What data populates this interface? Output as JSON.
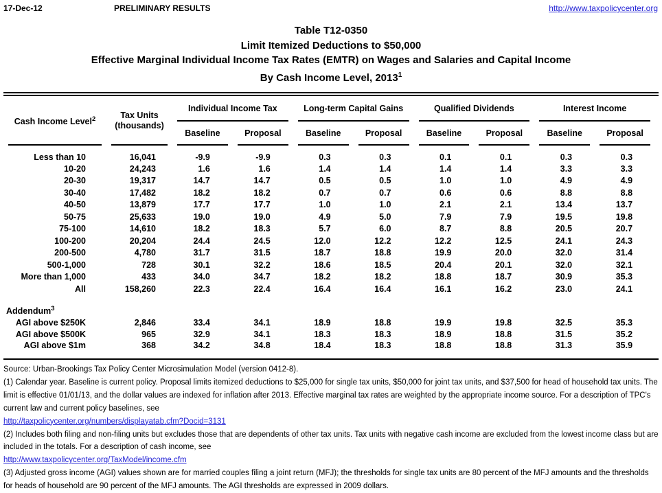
{
  "page": {
    "date": "17-Dec-12",
    "status": "PRELIMINARY RESULTS",
    "site_url": "http://www.taxpolicycenter.org"
  },
  "title": {
    "line1": "Table T12-0350",
    "line2": "Limit Itemized Deductions to $50,000",
    "line3": "Effective Marginal Individual Income Tax Rates (EMTR) on Wages and Salaries and Capital Income",
    "line4": "By Cash Income Level, 2013",
    "line4_superscript": "1"
  },
  "table": {
    "col1_header": "Cash Income Level",
    "col1_superscript": "2",
    "col2_header_line1": "Tax Units",
    "col2_header_line2": "(thousands)",
    "groups": [
      "Individual Income Tax",
      "Long-term Capital Gains",
      "Qualified Dividends",
      "Interest Income"
    ],
    "sub_headers": [
      "Baseline",
      "Proposal"
    ],
    "rows": [
      {
        "label": "Less than 10",
        "tax_units": "16,041",
        "values": [
          "-9.9",
          "-9.9",
          "0.3",
          "0.3",
          "0.1",
          "0.1",
          "0.3",
          "0.3"
        ]
      },
      {
        "label": "10-20",
        "tax_units": "24,243",
        "values": [
          "1.6",
          "1.6",
          "1.4",
          "1.4",
          "1.4",
          "1.4",
          "3.3",
          "3.3"
        ]
      },
      {
        "label": "20-30",
        "tax_units": "19,317",
        "values": [
          "14.7",
          "14.7",
          "0.5",
          "0.5",
          "1.0",
          "1.0",
          "4.9",
          "4.9"
        ]
      },
      {
        "label": "30-40",
        "tax_units": "17,482",
        "values": [
          "18.2",
          "18.2",
          "0.7",
          "0.7",
          "0.6",
          "0.6",
          "8.8",
          "8.8"
        ]
      },
      {
        "label": "40-50",
        "tax_units": "13,879",
        "values": [
          "17.7",
          "17.7",
          "1.0",
          "1.0",
          "2.1",
          "2.1",
          "13.4",
          "13.7"
        ]
      },
      {
        "label": "50-75",
        "tax_units": "25,633",
        "values": [
          "19.0",
          "19.0",
          "4.9",
          "5.0",
          "7.9",
          "7.9",
          "19.5",
          "19.8"
        ]
      },
      {
        "label": "75-100",
        "tax_units": "14,610",
        "values": [
          "18.2",
          "18.3",
          "5.7",
          "6.0",
          "8.7",
          "8.8",
          "20.5",
          "20.7"
        ]
      },
      {
        "label": "100-200",
        "tax_units": "20,204",
        "values": [
          "24.4",
          "24.5",
          "12.0",
          "12.2",
          "12.2",
          "12.5",
          "24.1",
          "24.3"
        ]
      },
      {
        "label": "200-500",
        "tax_units": "4,780",
        "values": [
          "31.7",
          "31.5",
          "18.7",
          "18.8",
          "19.9",
          "20.0",
          "32.0",
          "31.4"
        ]
      },
      {
        "label": "500-1,000",
        "tax_units": "728",
        "values": [
          "30.1",
          "32.2",
          "18.6",
          "18.5",
          "20.4",
          "20.1",
          "32.0",
          "32.1"
        ]
      },
      {
        "label": "More than 1,000",
        "tax_units": "433",
        "values": [
          "34.0",
          "34.7",
          "18.2",
          "18.2",
          "18.8",
          "18.7",
          "30.9",
          "35.3"
        ]
      },
      {
        "label": "All",
        "tax_units": "158,260",
        "values": [
          "22.3",
          "22.4",
          "16.4",
          "16.4",
          "16.1",
          "16.2",
          "23.0",
          "24.1"
        ]
      }
    ],
    "addendum_label": "Addendum",
    "addendum_superscript": "3",
    "addendum_rows": [
      {
        "label": "AGI above $250K",
        "tax_units": "2,846",
        "values": [
          "33.4",
          "34.1",
          "18.9",
          "18.8",
          "19.9",
          "19.8",
          "32.5",
          "35.3"
        ]
      },
      {
        "label": "AGI above $500K",
        "tax_units": "965",
        "values": [
          "32.9",
          "34.1",
          "18.3",
          "18.3",
          "18.9",
          "18.8",
          "31.5",
          "35.2"
        ]
      },
      {
        "label": "AGI above $1m",
        "tax_units": "368",
        "values": [
          "34.2",
          "34.8",
          "18.4",
          "18.3",
          "18.8",
          "18.8",
          "31.3",
          "35.9"
        ]
      }
    ]
  },
  "footnotes": {
    "source": "Source: Urban-Brookings Tax Policy Center Microsimulation Model (version 0412-8).",
    "note1": "(1) Calendar year. Baseline is current policy.  Proposal limits itemized deductions to $25,000 for single tax units, $50,000 for joint tax units, and $37,500 for head of household tax units. The limit is effective 01/01/13, and the dollar values are indexed for inflation after 2013. Effective marginal tax rates are weighted by the appropriate income source. For a description of TPC's current law and current policy baselines, see",
    "link1": "http://taxpolicycenter.org/numbers/displayatab.cfm?Docid=3131",
    "note2": "(2) Includes both filing and non-filing units but excludes those that are dependents of other tax units. Tax units with negative cash income are excluded from the lowest income class but are included in the totals. For a description of cash income, see",
    "link2": "http://www.taxpolicycenter.org/TaxModel/income.cfm",
    "note3": "(3) Adjusted gross income (AGI) values shown are for married couples filing a joint return (MFJ); the thresholds for single tax units are 80 percent of the MFJ amounts and the thresholds for heads of household are 90 percent of the MFJ amounts. The AGI thresholds are expressed in 2009 dollars."
  },
  "colors": {
    "link": "#2424D6",
    "text": "#000000",
    "background": "#FFFFFF"
  }
}
